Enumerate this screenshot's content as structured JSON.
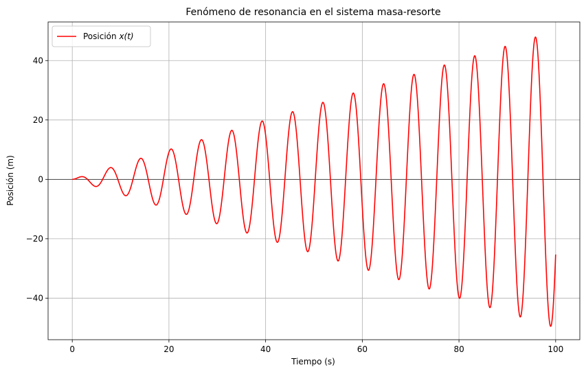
{
  "chart_data": {
    "type": "line",
    "title": "Fenómeno de resonancia en el sistema masa-resorte",
    "xlabel": "Tiempo (s)",
    "ylabel": "Posición (m)",
    "xlim": [
      -5,
      105
    ],
    "ylim": [
      -54,
      53
    ],
    "xticks": [
      0,
      20,
      40,
      60,
      80,
      100
    ],
    "xtick_labels": [
      "0",
      "20",
      "40",
      "60",
      "80",
      "100"
    ],
    "yticks": [
      -40,
      -20,
      0,
      20,
      40
    ],
    "ytick_labels": [
      "−40",
      "−20",
      "0",
      "20",
      "40"
    ],
    "grid": true,
    "legend_position": "upper-left",
    "colors": {
      "series": "#ff0000",
      "grid": "#b0b0b0",
      "zero_line": "#000000",
      "axes": "#000000"
    },
    "series": [
      {
        "name": "Posición x(t)",
        "legend_main": "Posición ",
        "legend_math": "x(t)",
        "function": "x(t) = (t/2)·sin(t)",
        "t_range": [
          0,
          100
        ]
      }
    ]
  }
}
